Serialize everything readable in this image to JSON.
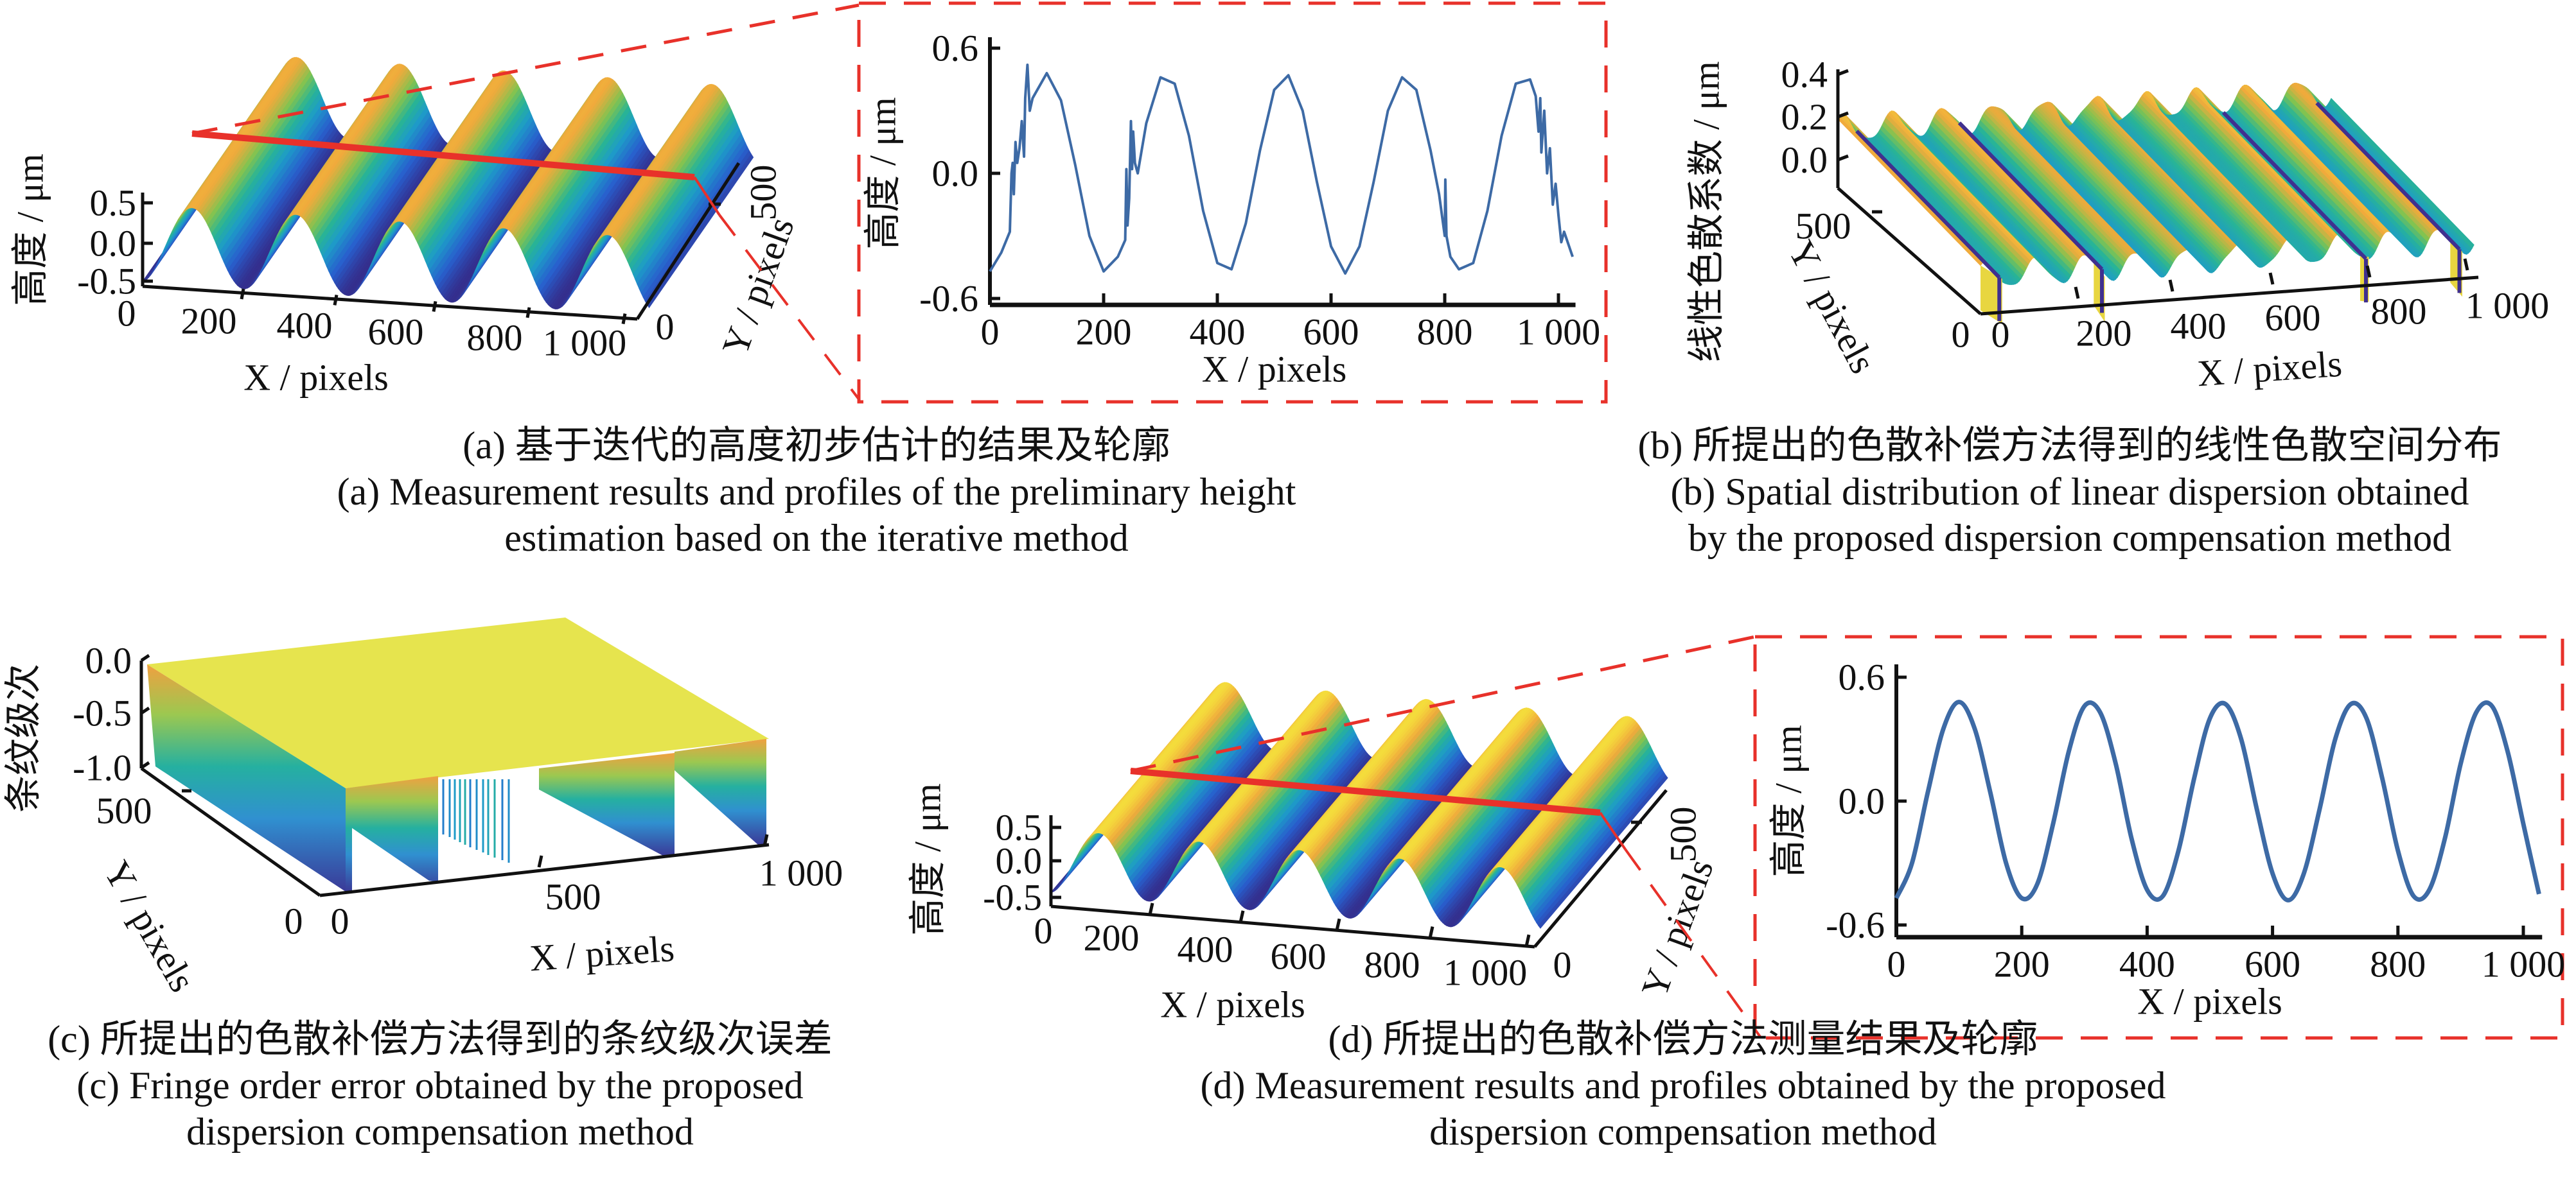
{
  "captions": {
    "a_zh": "(a) 基于迭代的高度初步估计的结果及轮廓",
    "a_en1": "(a) Measurement results and profiles of the preliminary height",
    "a_en2": "estimation based on the iterative method",
    "b_zh": "(b) 所提出的色散补偿方法得到的线性色散空间分布",
    "b_en1": "(b)  Spatial distribution of linear dispersion obtained",
    "b_en2": "by the proposed dispersion compensation method",
    "c_zh": "(c) 所提出的色散补偿方法得到的条纹级次误差",
    "c_en1": "(c) Fringe order error obtained by the proposed",
    "c_en2": "dispersion compensation method",
    "d_zh": "(d) 所提出的色散补偿方法测量结果及轮廓",
    "d_en1": "(d) Measurement results and profiles obtained by the proposed",
    "d_en2": "dispersion compensation method"
  },
  "colors": {
    "profile_line": "#3d6aa5",
    "highlight": "#e8312a",
    "axis": "#111111",
    "flat_top": "#e6e44e"
  },
  "chart_data": [
    {
      "id": "a_surface",
      "type": "surface",
      "xlabel": "X / pixels",
      "ylabel": "Y / pixels",
      "zlabel": "高度 / μm",
      "xticks": [
        "0",
        "200",
        "400",
        "600",
        "800",
        "1 000"
      ],
      "yticks": [
        "0",
        "500"
      ],
      "zticks": [
        "0.5",
        "0.0",
        "-0.5"
      ],
      "xlim": [
        0,
        1024
      ],
      "ylim": [
        0,
        600
      ],
      "zlim": [
        -0.5,
        0.5
      ],
      "model": {
        "shape": "sinusoidal grating",
        "amplitude": 0.48,
        "period": 210,
        "peak_x": 100
      }
    },
    {
      "id": "a_profile",
      "type": "line",
      "xlabel": "X / pixels",
      "ylabel": "高度 / μm",
      "xticks": [
        "0",
        "200",
        "400",
        "600",
        "800",
        "1 000"
      ],
      "yticks": [
        "0.6",
        "0.0",
        "-0.6"
      ],
      "xlim": [
        0,
        1030
      ],
      "ylim": [
        -0.6,
        0.6
      ],
      "x": [
        0,
        20,
        35,
        38,
        40,
        42,
        45,
        48,
        52,
        56,
        60,
        62,
        66,
        70,
        75,
        100,
        125,
        150,
        175,
        200,
        225,
        238,
        240,
        242,
        245,
        248,
        250,
        252,
        255,
        260,
        275,
        300,
        325,
        350,
        375,
        400,
        425,
        450,
        475,
        500,
        525,
        550,
        575,
        600,
        625,
        650,
        675,
        700,
        725,
        750,
        775,
        790,
        800,
        801,
        803,
        810,
        825,
        850,
        875,
        900,
        925,
        950,
        960,
        965,
        968,
        970,
        975,
        980,
        985,
        990,
        995,
        1000,
        1005,
        1010,
        1025
      ],
      "y": [
        -0.47,
        -0.38,
        -0.28,
        0.0,
        0.05,
        -0.1,
        0.15,
        0.05,
        0.12,
        0.25,
        0.08,
        0.36,
        0.52,
        0.3,
        0.36,
        0.48,
        0.35,
        0.04,
        -0.3,
        -0.47,
        -0.4,
        -0.32,
        0.02,
        -0.25,
        -0.12,
        0.25,
        0.02,
        0.2,
        0.05,
        0.0,
        0.24,
        0.46,
        0.43,
        0.18,
        -0.18,
        -0.43,
        -0.46,
        -0.24,
        0.11,
        0.4,
        0.47,
        0.3,
        -0.04,
        -0.35,
        -0.48,
        -0.35,
        -0.04,
        0.3,
        0.46,
        0.4,
        0.11,
        -0.1,
        -0.3,
        -0.03,
        -0.3,
        -0.4,
        -0.46,
        -0.43,
        -0.18,
        0.18,
        0.43,
        0.45,
        0.37,
        0.2,
        0.36,
        0.1,
        0.3,
        0.0,
        0.12,
        -0.15,
        -0.05,
        -0.2,
        -0.33,
        -0.28,
        -0.4
      ]
    },
    {
      "id": "b_surface",
      "type": "surface",
      "xlabel": "X / pixels",
      "ylabel": "Y / pixels",
      "zlabel": "线性色散系数 / μm",
      "xticks": [
        "0",
        "200",
        "400",
        "600",
        "800",
        "1 000"
      ],
      "yticks": [
        "0",
        "500"
      ],
      "zticks": [
        "0.4",
        "0.2",
        "0.0"
      ],
      "xlim": [
        0,
        1024
      ],
      "ylim": [
        0,
        600
      ],
      "zlim": [
        0.0,
        0.4
      ],
      "model": {
        "mean": 0.12,
        "amplitude": 0.06,
        "period": 105,
        "discontinuities_x": [
          20,
          245,
          798,
          990
        ]
      }
    },
    {
      "id": "c_surface",
      "type": "surface",
      "xlabel": "X / pixels",
      "ylabel": "Y / pixels",
      "zlabel": "条纹级次",
      "xticks": [
        "0",
        "500",
        "1 000"
      ],
      "yticks": [
        "0",
        "500"
      ],
      "zticks": [
        "0.0",
        "-0.5",
        "-1.0"
      ],
      "xlim": [
        0,
        1024
      ],
      "ylim": [
        0,
        600
      ],
      "zlim": [
        -1.0,
        0.0
      ],
      "model": {
        "top_value": 0.0
      }
    },
    {
      "id": "d_surface",
      "type": "surface",
      "xlabel": "X / pixels",
      "ylabel": "Y / pixels",
      "zlabel": "高度 / μm",
      "xticks": [
        "0",
        "200",
        "400",
        "600",
        "800",
        "1 000"
      ],
      "yticks": [
        "0",
        "500"
      ],
      "zticks": [
        "0.5",
        "0.0",
        "-0.5"
      ],
      "xlim": [
        0,
        1024
      ],
      "ylim": [
        0,
        600
      ],
      "zlim": [
        -0.5,
        0.5
      ],
      "model": {
        "shape": "sinusoidal grating",
        "amplitude": 0.48,
        "period": 210,
        "peak_x": 100
      }
    },
    {
      "id": "d_profile",
      "type": "line",
      "xlabel": "X / pixels",
      "ylabel": "高度 / μm",
      "xticks": [
        "0",
        "200",
        "400",
        "600",
        "800",
        "1 000"
      ],
      "yticks": [
        "0.6",
        "0.0",
        "-0.6"
      ],
      "xlim": [
        0,
        1030
      ],
      "ylim": [
        -0.6,
        0.6
      ],
      "x": [
        0,
        25,
        50,
        75,
        100,
        125,
        150,
        175,
        200,
        225,
        250,
        275,
        300,
        325,
        350,
        375,
        400,
        425,
        450,
        475,
        500,
        525,
        550,
        575,
        600,
        625,
        650,
        675,
        700,
        725,
        750,
        775,
        800,
        825,
        850,
        875,
        900,
        925,
        950,
        975,
        1000,
        1025
      ],
      "y": [
        -0.47,
        -0.3,
        0.04,
        0.35,
        0.48,
        0.35,
        0.04,
        -0.3,
        -0.47,
        -0.4,
        -0.11,
        0.24,
        0.46,
        0.43,
        0.18,
        -0.18,
        -0.43,
        -0.46,
        -0.24,
        0.11,
        0.4,
        0.47,
        0.3,
        -0.04,
        -0.35,
        -0.48,
        -0.35,
        -0.04,
        0.3,
        0.47,
        0.4,
        0.11,
        -0.24,
        -0.46,
        -0.43,
        -0.18,
        0.18,
        0.43,
        0.46,
        0.24,
        -0.11,
        -0.45
      ]
    }
  ]
}
